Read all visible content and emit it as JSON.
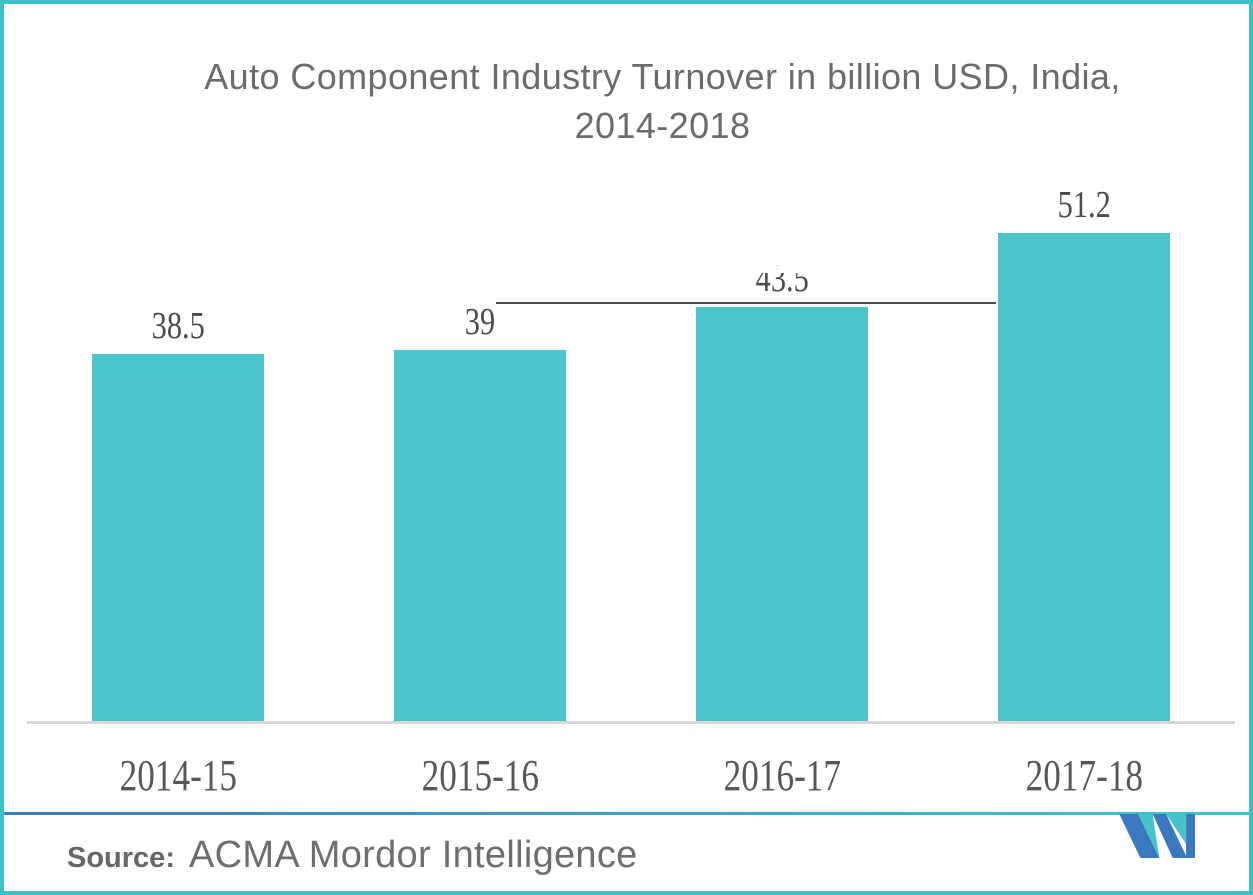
{
  "title": {
    "line1": "Auto Component Industry Turnover in billion USD, India,",
    "line2": "2014-2018"
  },
  "chart_data": {
    "type": "bar",
    "categories": [
      "2014-15",
      "2015-16",
      "2016-17",
      "2017-18"
    ],
    "values": [
      38.5,
      39,
      43.5,
      51.2
    ],
    "data_labels": [
      "38.5",
      "39",
      "43.5",
      "51.2"
    ],
    "title": "Auto Component Industry Turnover in billion USD, India, 2014-2018",
    "xlabel": "",
    "ylabel": "",
    "ylim": [
      0,
      55
    ],
    "grid": false,
    "legend": "none",
    "bar_color": "#4ec4cb"
  },
  "source": {
    "label": "Source:",
    "text": "ACMA Mordor Intelligence"
  },
  "footer": {
    "logo_name": "mordor-intelligence-logo"
  },
  "colors": {
    "bar_teal": "#4ec4cb",
    "axis_gray": "#d6d6d6",
    "title_gray": "#6b6b6b",
    "value_label_gray": "#4c4c4c",
    "separator_blue": "#3b7fc4",
    "separator_teal": "#42c4ca",
    "logo_blue": "#3a79be",
    "logo_teal": "#48c2c9",
    "frame_teal": "#3dbfc6"
  }
}
